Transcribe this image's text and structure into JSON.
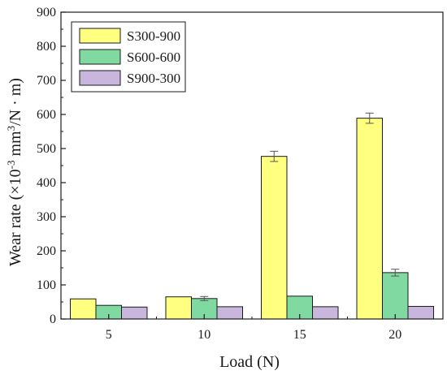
{
  "chart_data": {
    "type": "bar",
    "xlabel": "Load (N)",
    "ylabel_parts": {
      "pre": "Wear rate (×10",
      "exp1": "-3",
      "mid": " mm",
      "exp2": "3",
      "post": "/N · m)"
    },
    "ylim": [
      0,
      900
    ],
    "yticks": [
      0,
      100,
      200,
      300,
      400,
      500,
      600,
      700,
      800,
      900
    ],
    "categories": [
      "5",
      "10",
      "15",
      "20"
    ],
    "series": [
      {
        "name": "S300-900",
        "color": "#ffff80",
        "values": [
          59,
          65,
          477,
          589
        ],
        "errors": [
          0,
          0,
          15,
          15
        ]
      },
      {
        "name": "S600-600",
        "color": "#80d9a0",
        "values": [
          40,
          60,
          67,
          136
        ],
        "errors": [
          0,
          6,
          0,
          10
        ]
      },
      {
        "name": "S900-300",
        "color": "#c9b6dc",
        "values": [
          35,
          36,
          36,
          37
        ],
        "errors": [
          0,
          0,
          0,
          0
        ]
      }
    ],
    "legend_position": "top-left",
    "grid": false
  }
}
